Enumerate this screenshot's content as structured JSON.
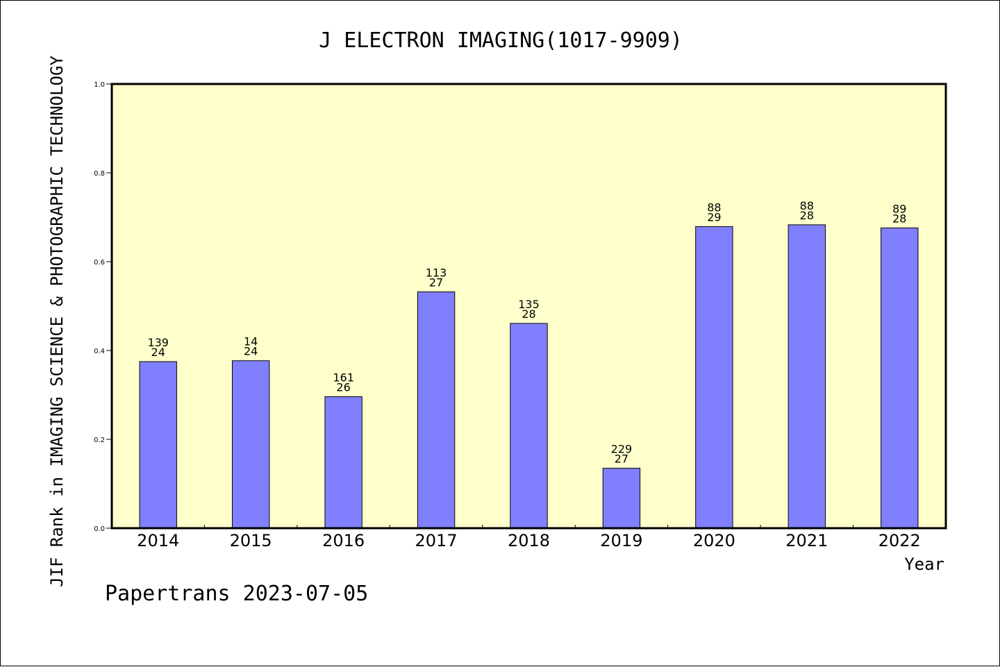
{
  "chart_data": {
    "type": "bar",
    "title": "J ELECTRON IMAGING(1017-9909)",
    "ylabel": "JIF Rank in IMAGING SCIENCE & PHOTOGRAPHIC TECHNOLOGY",
    "xlabel": "Year",
    "footer": "Papertrans 2023-07-05",
    "categories": [
      "2014",
      "2015",
      "2016",
      "2017",
      "2018",
      "2019",
      "2020",
      "2021",
      "2022"
    ],
    "values": [
      0.375,
      0.377,
      0.296,
      0.532,
      0.461,
      0.135,
      0.679,
      0.683,
      0.676
    ],
    "data_labels": [
      [
        "139",
        "24"
      ],
      [
        "14",
        "24"
      ],
      [
        "161",
        "26"
      ],
      [
        "113",
        "27"
      ],
      [
        "135",
        "28"
      ],
      [
        "229",
        "27"
      ],
      [
        "88",
        "29"
      ],
      [
        "88",
        "28"
      ],
      [
        "89",
        "28"
      ]
    ],
    "ylim": [
      0,
      1.0
    ],
    "yticks": [
      "0.0",
      "0.2",
      "0.4",
      "0.6",
      "0.8",
      "1.0"
    ],
    "grid": false,
    "colors": {
      "plot_background": "#ffffcc",
      "bar_fill": "#8080ff",
      "bar_stroke": "#000000",
      "text": "#000000"
    }
  }
}
